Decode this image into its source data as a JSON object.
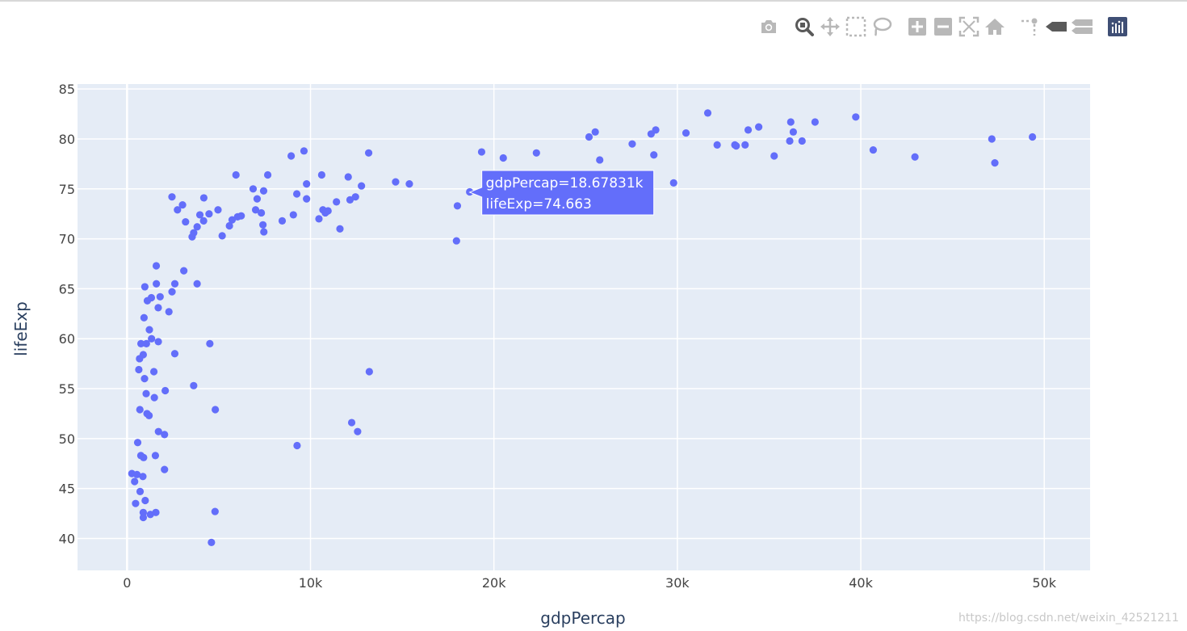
{
  "modebar": {
    "buttons": [
      "camera-icon",
      "zoom-icon",
      "pan-icon",
      "box-select-icon",
      "lasso-select-icon",
      "zoom-in-icon",
      "zoom-out-icon",
      "autoscale-icon",
      "reset-axes-icon",
      "spike-lines-icon",
      "hover-closest-icon",
      "hover-compare-icon",
      "plotly-logo-icon"
    ],
    "active": "zoom-icon"
  },
  "colors": {
    "plot_bg": "#e5ecf6",
    "marker": "#636efa",
    "grid": "#ffffff",
    "tick_text": "#444444",
    "axis_title": "#2a3f5f"
  },
  "chart_data": {
    "type": "scatter",
    "xlabel": "gdpPercap",
    "ylabel": "lifeExp",
    "xlim": [
      -2700,
      52500
    ],
    "ylim": [
      36.8,
      85.5
    ],
    "xticks": [
      0,
      10000,
      20000,
      30000,
      40000,
      50000
    ],
    "xtick_labels": [
      "0",
      "10k",
      "20k",
      "30k",
      "40k",
      "50k"
    ],
    "yticks": [
      40,
      45,
      50,
      55,
      60,
      65,
      70,
      75,
      80,
      85
    ],
    "ytick_labels": [
      "40",
      "45",
      "50",
      "55",
      "60",
      "65",
      "70",
      "75",
      "80",
      "85"
    ],
    "grid": true,
    "hover": {
      "x": 18678.31,
      "y": 74.663,
      "line1": "gdpPercap=18.67831k",
      "line2": "lifeExp=74.663"
    },
    "points": [
      [
        263,
        46.5
      ],
      [
        413,
        45.7
      ],
      [
        466,
        43.5
      ],
      [
        541,
        46.4
      ],
      [
        580,
        49.6
      ],
      [
        641,
        56.9
      ],
      [
        682,
        58.0
      ],
      [
        700,
        52.9
      ],
      [
        712,
        44.7
      ],
      [
        752,
        48.3
      ],
      [
        759,
        59.5
      ],
      [
        863,
        46.2
      ],
      [
        883,
        42.6
      ],
      [
        885,
        42.1
      ],
      [
        883,
        58.4
      ],
      [
        903,
        48.1
      ],
      [
        926,
        62.1
      ],
      [
        954,
        56.0
      ],
      [
        970,
        65.2
      ],
      [
        990,
        43.8
      ],
      [
        1042,
        54.5
      ],
      [
        1056,
        59.5
      ],
      [
        1087,
        52.5
      ],
      [
        1107,
        63.8
      ],
      [
        1201,
        52.3
      ],
      [
        1217,
        60.9
      ],
      [
        1271,
        42.4
      ],
      [
        1326,
        64.1
      ],
      [
        1336,
        60.0
      ],
      [
        1463,
        56.7
      ],
      [
        1488,
        54.1
      ],
      [
        1545,
        48.3
      ],
      [
        1569,
        42.6
      ],
      [
        1593,
        67.3
      ],
      [
        1598,
        65.5
      ],
      [
        1700,
        63.1
      ],
      [
        1713,
        50.7
      ],
      [
        1704,
        59.7
      ],
      [
        1803,
        64.2
      ],
      [
        2042,
        50.4
      ],
      [
        2042,
        46.9
      ],
      [
        2082,
        54.8
      ],
      [
        2283,
        62.7
      ],
      [
        2452,
        64.7
      ],
      [
        2449,
        74.2
      ],
      [
        2602,
        58.5
      ],
      [
        2605,
        65.5
      ],
      [
        2749,
        72.9
      ],
      [
        3025,
        73.4
      ],
      [
        3095,
        66.8
      ],
      [
        3190,
        71.7
      ],
      [
        3548,
        70.2
      ],
      [
        3633,
        70.6
      ],
      [
        3632,
        55.3
      ],
      [
        3820,
        65.5
      ],
      [
        3822,
        71.2
      ],
      [
        3970,
        72.4
      ],
      [
        4173,
        71.8
      ],
      [
        4185,
        74.1
      ],
      [
        4471,
        72.5
      ],
      [
        4513,
        59.5
      ],
      [
        4600,
        39.6
      ],
      [
        4797,
        42.7
      ],
      [
        4811,
        52.9
      ],
      [
        4959,
        72.9
      ],
      [
        5186,
        70.3
      ],
      [
        5581,
        71.3
      ],
      [
        5728,
        71.9
      ],
      [
        5937,
        76.4
      ],
      [
        6025,
        72.2
      ],
      [
        6223,
        72.3
      ],
      [
        6873,
        75.0
      ],
      [
        7008,
        72.9
      ],
      [
        7092,
        74.0
      ],
      [
        7320,
        72.6
      ],
      [
        7408,
        71.4
      ],
      [
        7458,
        70.7
      ],
      [
        7446,
        74.8
      ],
      [
        7670,
        76.4
      ],
      [
        8458,
        71.8
      ],
      [
        8948,
        78.3
      ],
      [
        9066,
        72.4
      ],
      [
        9254,
        74.5
      ],
      [
        9270,
        49.3
      ],
      [
        9645,
        78.8
      ],
      [
        9787,
        74.0
      ],
      [
        9787,
        75.5
      ],
      [
        10461,
        72.0
      ],
      [
        10611,
        76.4
      ],
      [
        10678,
        72.9
      ],
      [
        10808,
        72.6
      ],
      [
        10957,
        72.8
      ],
      [
        11416,
        73.7
      ],
      [
        11606,
        71.0
      ],
      [
        12057,
        76.2
      ],
      [
        12154,
        73.9
      ],
      [
        12246,
        51.6
      ],
      [
        12452,
        74.2
      ],
      [
        12570,
        50.7
      ],
      [
        12779,
        75.3
      ],
      [
        13172,
        78.6
      ],
      [
        13207,
        56.7
      ],
      [
        14641,
        75.7
      ],
      [
        15389,
        75.5
      ],
      [
        17958,
        69.8
      ],
      [
        18009,
        73.3
      ],
      [
        18678,
        74.7
      ],
      [
        19329,
        78.7
      ],
      [
        20510,
        78.1
      ],
      [
        22316,
        78.6
      ],
      [
        25185,
        80.2
      ],
      [
        25523,
        80.7
      ],
      [
        25768,
        77.9
      ],
      [
        27538,
        79.5
      ],
      [
        28569,
        80.5
      ],
      [
        28718,
        78.4
      ],
      [
        28821,
        80.9
      ],
      [
        29796,
        75.6
      ],
      [
        30470,
        80.6
      ],
      [
        31657,
        82.6
      ],
      [
        32170,
        79.4
      ],
      [
        33133,
        79.4
      ],
      [
        33207,
        79.3
      ],
      [
        33693,
        79.4
      ],
      [
        33860,
        80.9
      ],
      [
        34435,
        81.2
      ],
      [
        35278,
        78.3
      ],
      [
        36126,
        79.8
      ],
      [
        36181,
        81.7
      ],
      [
        36319,
        80.7
      ],
      [
        36798,
        79.8
      ],
      [
        37506,
        81.7
      ],
      [
        39725,
        82.2
      ],
      [
        40676,
        78.9
      ],
      [
        42952,
        78.2
      ],
      [
        47143,
        80.0
      ],
      [
        47307,
        77.6
      ],
      [
        49357,
        80.2
      ]
    ]
  }
}
